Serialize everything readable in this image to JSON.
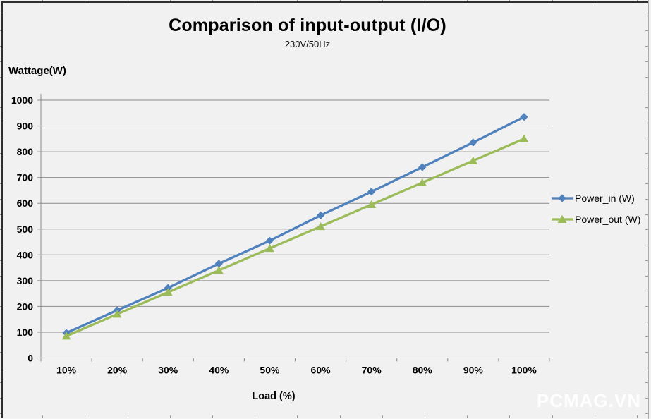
{
  "header": {
    "title": "Comparison of input-output (I/O)",
    "subtitle": "230V/50Hz"
  },
  "chart_data": {
    "type": "line",
    "title": "Comparison of input-output (I/O)",
    "subtitle": "230V/50Hz",
    "xlabel": "Load (%)",
    "ylabel": "Wattage(W)",
    "categories": [
      "10%",
      "20%",
      "30%",
      "40%",
      "50%",
      "60%",
      "70%",
      "80%",
      "90%",
      "100%"
    ],
    "series": [
      {
        "name": "Power_in (W)",
        "values": [
          97,
          185,
          272,
          366,
          455,
          553,
          645,
          740,
          836,
          935
        ],
        "color": "#4F81BD",
        "marker": "diamond"
      },
      {
        "name": "Power_out (W)",
        "values": [
          85,
          170,
          255,
          340,
          425,
          510,
          595,
          680,
          765,
          850
        ],
        "color": "#9BBB59",
        "marker": "triangle"
      }
    ],
    "ylim": [
      0,
      1000
    ],
    "ytick_step": 100,
    "grid": true,
    "gridline_color": "#8c8c8c",
    "axis_color": "#8c8c8c",
    "legend_position": "right"
  },
  "watermark": {
    "text": "PCMAG.VN",
    "color": "#ffffff"
  }
}
